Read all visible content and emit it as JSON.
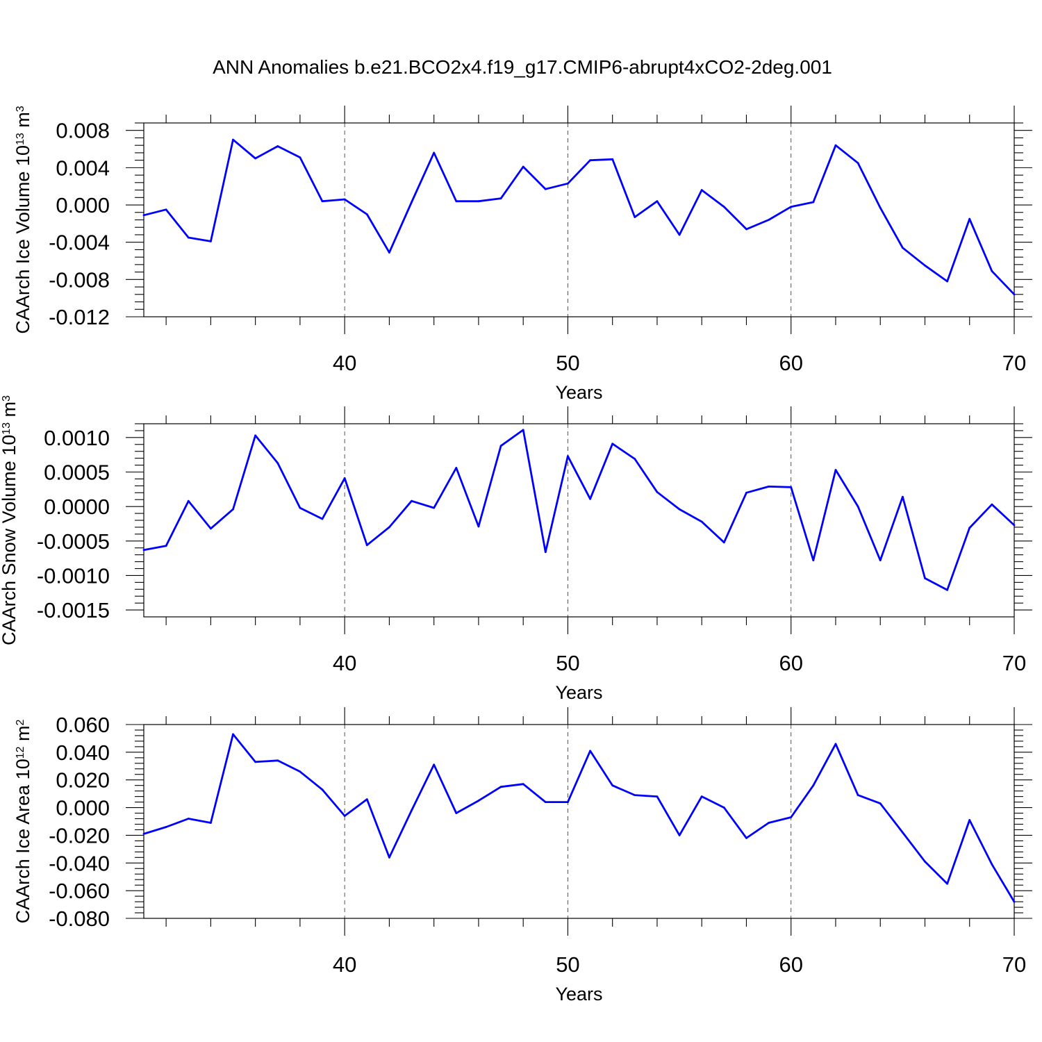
{
  "title": "ANN Anomalies b.e21.BCO2x4.f19_g17.CMIP6-abrupt4xCO2-2deg.001",
  "line_color": "#0000ff",
  "chart_data": [
    {
      "type": "line",
      "xlabel": "Years",
      "ylabel": "CAArch Ice Volume 10",
      "ylabel_sup": "13",
      "ylabel_unit": " m",
      "ylabel_unit_sup": "3",
      "xlim": [
        31,
        70
      ],
      "ylim": [
        -0.012,
        0.0088
      ],
      "x_ticks": [
        "40",
        "50",
        "60",
        "70"
      ],
      "y_ticks": [
        "0.008",
        "0.004",
        "0.000",
        "-0.004",
        "-0.008",
        "-0.012"
      ],
      "grid": "dashed vertical lines at major x ticks",
      "x": [
        31,
        32,
        33,
        34,
        35,
        36,
        37,
        38,
        39,
        40,
        41,
        42,
        43,
        44,
        45,
        46,
        47,
        48,
        49,
        50,
        51,
        52,
        53,
        54,
        55,
        56,
        57,
        58,
        59,
        60,
        61,
        62,
        63,
        64,
        65,
        66,
        67,
        68,
        69,
        70
      ],
      "values": [
        -0.0011,
        -0.0005,
        -0.0035,
        -0.0039,
        0.007,
        0.005,
        0.0063,
        0.0051,
        0.0004,
        0.0006,
        -0.001,
        -0.0051,
        0.0003,
        0.0056,
        0.0004,
        0.0004,
        0.0007,
        0.0041,
        0.0017,
        0.0023,
        0.0048,
        0.0049,
        -0.0013,
        0.0004,
        -0.0032,
        0.0016,
        -0.0002,
        -0.0026,
        -0.0016,
        -0.0002,
        0.0003,
        0.0064,
        0.0045,
        -0.0003,
        -0.0046,
        -0.0065,
        -0.0082,
        -0.0015,
        -0.0071,
        -0.0096
      ]
    },
    {
      "type": "line",
      "xlabel": "Years",
      "ylabel": "CAArch Snow Volume 10",
      "ylabel_sup": "13",
      "ylabel_unit": " m",
      "ylabel_unit_sup": "3",
      "xlim": [
        31,
        70
      ],
      "ylim": [
        -0.0016,
        0.0012
      ],
      "x_ticks": [
        "40",
        "50",
        "60",
        "70"
      ],
      "y_ticks": [
        "0.0010",
        "0.0005",
        "0.0000",
        "-0.0005",
        "-0.0010",
        "-0.0015"
      ],
      "grid": "dashed vertical lines at major x ticks",
      "x": [
        31,
        32,
        33,
        34,
        35,
        36,
        37,
        38,
        39,
        40,
        41,
        42,
        43,
        44,
        45,
        46,
        47,
        48,
        49,
        50,
        51,
        52,
        53,
        54,
        55,
        56,
        57,
        58,
        59,
        60,
        61,
        62,
        63,
        64,
        65,
        66,
        67,
        68,
        69,
        70
      ],
      "values": [
        -0.00063,
        -0.00057,
        8e-05,
        -0.00032,
        -4e-05,
        0.00103,
        0.00063,
        -2e-05,
        -0.00018,
        0.00041,
        -0.00056,
        -0.0003,
        8e-05,
        -2e-05,
        0.00056,
        -0.00029,
        0.00088,
        0.00111,
        -0.00066,
        0.00073,
        0.00011,
        0.00091,
        0.00069,
        0.00021,
        -4e-05,
        -0.00022,
        -0.00052,
        0.0002,
        0.00029,
        0.00028,
        -0.00078,
        0.00053,
        0.0,
        -0.00078,
        0.00014,
        -0.00104,
        -0.00121,
        -0.00031,
        3e-05,
        -0.00027
      ]
    },
    {
      "type": "line",
      "xlabel": "Years",
      "ylabel": "CAArch Ice Area 10",
      "ylabel_sup": "12",
      "ylabel_unit": " m",
      "ylabel_unit_sup": "2",
      "xlim": [
        31,
        70
      ],
      "ylim": [
        -0.08,
        0.06
      ],
      "x_ticks": [
        "40",
        "50",
        "60",
        "70"
      ],
      "y_ticks": [
        "0.060",
        "0.040",
        "0.020",
        "0.000",
        "-0.020",
        "-0.040",
        "-0.060",
        "-0.080"
      ],
      "grid": "dashed vertical lines at major x ticks",
      "x": [
        31,
        32,
        33,
        34,
        35,
        36,
        37,
        38,
        39,
        40,
        41,
        42,
        43,
        44,
        45,
        46,
        47,
        48,
        49,
        50,
        51,
        52,
        53,
        54,
        55,
        56,
        57,
        58,
        59,
        60,
        61,
        62,
        63,
        64,
        65,
        66,
        67,
        68,
        69,
        70
      ],
      "values": [
        -0.019,
        -0.014,
        -0.008,
        -0.011,
        0.053,
        0.033,
        0.034,
        0.026,
        0.013,
        -0.006,
        0.006,
        -0.036,
        -0.002,
        0.031,
        -0.004,
        0.005,
        0.015,
        0.017,
        0.004,
        0.004,
        0.041,
        0.016,
        0.009,
        0.008,
        -0.02,
        0.008,
        0.0,
        -0.022,
        -0.011,
        -0.007,
        0.016,
        0.046,
        0.009,
        0.003,
        -0.018,
        -0.039,
        -0.055,
        -0.009,
        -0.041,
        -0.068
      ]
    }
  ]
}
